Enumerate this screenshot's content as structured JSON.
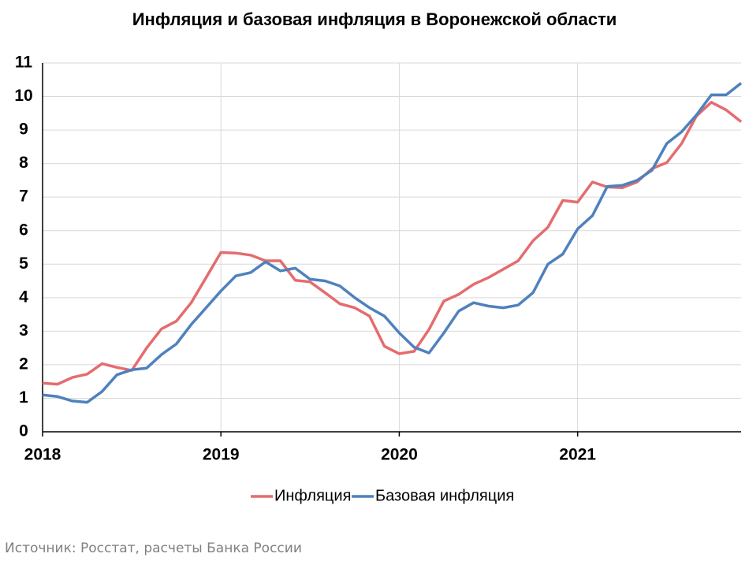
{
  "chart_data": {
    "type": "line",
    "title": "Инфляция и базовая инфляция в Воронежской области",
    "source": "Источник: Росстат, расчеты Банка России",
    "categories": [
      "2018",
      null,
      null,
      null,
      null,
      null,
      null,
      null,
      null,
      null,
      null,
      null,
      "2019",
      null,
      null,
      null,
      null,
      null,
      null,
      null,
      null,
      null,
      null,
      null,
      "2020",
      null,
      null,
      null,
      null,
      null,
      null,
      null,
      null,
      null,
      null,
      null,
      "2021",
      null,
      null,
      null,
      null,
      null,
      null,
      null,
      null,
      null,
      null,
      null
    ],
    "series": [
      {
        "name": "Инфляция",
        "color": "#e46c6f",
        "values": [
          1.45,
          1.42,
          1.62,
          1.72,
          2.03,
          1.92,
          1.83,
          2.5,
          3.07,
          3.3,
          3.85,
          4.6,
          5.35,
          5.33,
          5.27,
          5.1,
          5.1,
          4.52,
          4.47,
          4.15,
          3.82,
          3.7,
          3.45,
          2.55,
          2.33,
          2.4,
          3.05,
          3.9,
          4.1,
          4.4,
          4.6,
          4.85,
          5.1,
          5.7,
          6.1,
          6.9,
          6.85,
          7.45,
          7.3,
          7.28,
          7.45,
          7.85,
          8.03,
          8.6,
          9.42,
          9.83,
          9.6,
          9.25
        ]
      },
      {
        "name": "Базовая инфляция",
        "color": "#4f81bd",
        "values": [
          1.1,
          1.05,
          0.92,
          0.88,
          1.2,
          1.7,
          1.85,
          1.9,
          2.3,
          2.62,
          3.2,
          3.7,
          4.2,
          4.65,
          4.75,
          5.07,
          4.8,
          4.88,
          4.55,
          4.5,
          4.35,
          4.0,
          3.7,
          3.45,
          2.95,
          2.52,
          2.35,
          2.95,
          3.6,
          3.85,
          3.75,
          3.7,
          3.78,
          4.15,
          5.0,
          5.3,
          6.05,
          6.45,
          7.32,
          7.35,
          7.5,
          7.8,
          8.6,
          8.95,
          9.45,
          10.05,
          10.05,
          10.4
        ]
      }
    ],
    "ylim": [
      0,
      11
    ],
    "yticks": [
      0,
      1,
      2,
      3,
      4,
      5,
      6,
      7,
      8,
      9,
      10,
      11
    ],
    "grid": true,
    "legend": "bottom"
  }
}
